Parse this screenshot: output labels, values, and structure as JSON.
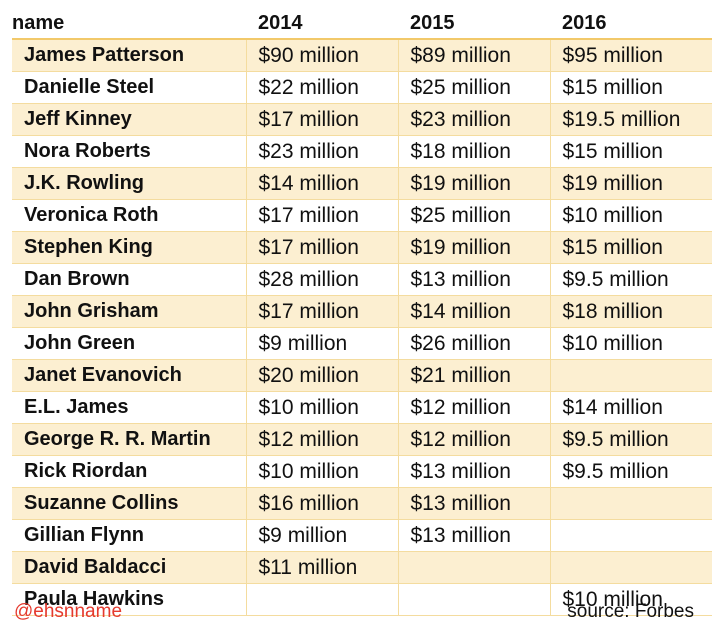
{
  "table": {
    "headers": [
      "name",
      "2014",
      "2015",
      "2016"
    ],
    "rows": [
      [
        "James Patterson",
        "$90 million",
        "$89 million",
        "$95 million"
      ],
      [
        "Danielle Steel",
        "$22 million",
        "$25 million",
        "$15 million"
      ],
      [
        "Jeff Kinney",
        "$17 million",
        "$23 million",
        "$19.5 million"
      ],
      [
        "Nora Roberts",
        "$23 million",
        "$18 million",
        "$15 million"
      ],
      [
        "J.K. Rowling",
        "$14 million",
        "$19 million",
        "$19 million"
      ],
      [
        "Veronica Roth",
        "$17 million",
        "$25 million",
        "$10 million"
      ],
      [
        "Stephen King",
        "$17 million",
        "$19 million",
        "$15 million"
      ],
      [
        "Dan Brown",
        "$28 million",
        "$13 million",
        "$9.5 million"
      ],
      [
        "John Grisham",
        "$17 million",
        "$14 million",
        "$18 million"
      ],
      [
        "John Green",
        "$9 million",
        "$26 million",
        "$10 million"
      ],
      [
        "Janet Evanovich",
        "$20 million",
        "$21 million",
        ""
      ],
      [
        "E.L. James",
        "$10 million",
        "$12 million",
        "$14 million"
      ],
      [
        "George R. R. Martin",
        "$12 million",
        "$12 million",
        "$9.5 million"
      ],
      [
        "Rick Riordan",
        "$10 million",
        "$13 million",
        "$9.5 million"
      ],
      [
        "Suzanne Collins",
        "$16 million",
        "$13 million",
        ""
      ],
      [
        "Gillian Flynn",
        "$9 million",
        "$13 million",
        ""
      ],
      [
        "David Baldacci",
        "$11 million",
        "",
        ""
      ],
      [
        "Paula Hawkins",
        "",
        "",
        "$10 million"
      ]
    ]
  },
  "footer": {
    "handle": "@ehsnname",
    "source": "source: Forbes"
  },
  "colors": {
    "band": "#fcefd1",
    "grid": "#f4dc9f",
    "handle": "#e53a2e"
  }
}
